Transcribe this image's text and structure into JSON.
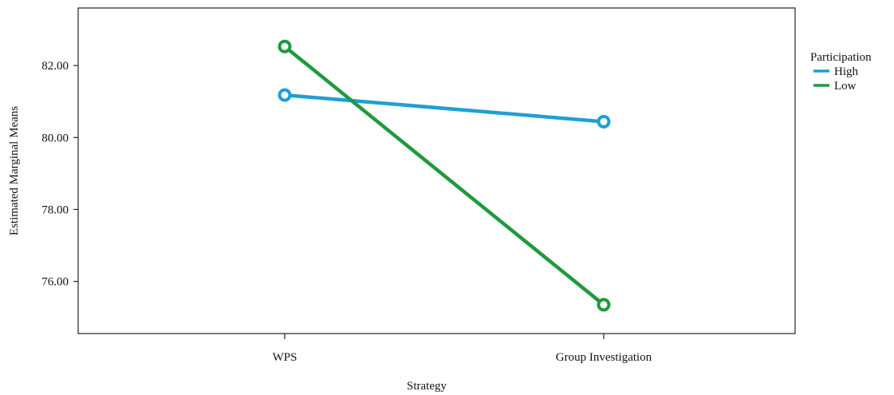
{
  "chart_data": {
    "type": "line",
    "title": "",
    "xlabel": "Strategy",
    "ylabel": "Estimated Marginal Means",
    "categories": [
      "WPS",
      "Group Investigation"
    ],
    "ylim": [
      74.55,
      83.6
    ],
    "yticks": [
      76,
      78,
      80,
      82
    ],
    "ytick_labels": [
      "76.00",
      "78.00",
      "80.00",
      "82.00"
    ],
    "grid": false,
    "legend": {
      "title": "Participation",
      "position": "right",
      "entries": [
        "High",
        "Low"
      ]
    },
    "series": [
      {
        "name": "High",
        "color": "#1f9fd4",
        "values": [
          81.18,
          80.44
        ]
      },
      {
        "name": "Low",
        "color": "#1e9a3e",
        "values": [
          82.53,
          75.35
        ]
      }
    ]
  }
}
